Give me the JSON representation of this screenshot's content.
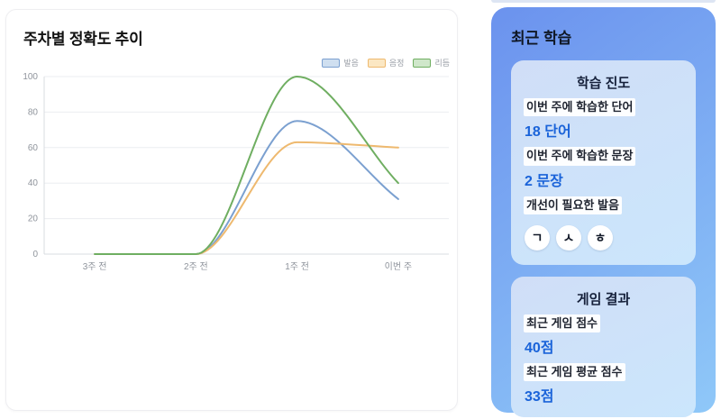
{
  "chart_card": {
    "title": "주차별 정확도 추이"
  },
  "chart_data": {
    "type": "line",
    "title": "주차별 정확도 추이",
    "categories": [
      "3주 전",
      "2주 전",
      "1주 전",
      "이번 주"
    ],
    "series": [
      {
        "name": "발음",
        "values": [
          0,
          0,
          75,
          31
        ],
        "color": "#7ba0d0",
        "fill": "#cfdff0"
      },
      {
        "name": "음정",
        "values": [
          0,
          0,
          63,
          60
        ],
        "color": "#eeb96f",
        "fill": "#fbe7c3"
      },
      {
        "name": "리듬",
        "values": [
          0,
          0,
          100,
          40
        ],
        "color": "#6fae61",
        "fill": "#cfe7ca"
      }
    ],
    "xlabel": "",
    "ylabel": "",
    "ylim": [
      0,
      100
    ],
    "yticks": [
      0,
      20,
      40,
      60,
      80,
      100
    ],
    "grid": true,
    "legend_position": "top-right"
  },
  "recent_panel": {
    "title": "최근 학습",
    "cards": [
      {
        "title": "학습 진도",
        "rows": [
          {
            "label": "이번 주에 학습한 단어",
            "value": "18 단어"
          },
          {
            "label": "이번 주에 학습한 문장",
            "value": "2 문장"
          },
          {
            "label": "개선이 필요한 발음",
            "value": ""
          }
        ],
        "chips": [
          "ㄱ",
          "ㅅ",
          "ㅎ"
        ]
      },
      {
        "title": "게임 결과",
        "rows": [
          {
            "label": "최근 게임 점수",
            "value": "40점"
          },
          {
            "label": "최근 게임 평균 점수",
            "value": "33점"
          }
        ]
      }
    ]
  },
  "colors": {
    "accent_value": "#1a63d9",
    "panel_start": "#6b92ee",
    "panel_end": "#8fc8f8",
    "card_start": "#d0def7",
    "card_end": "#cbe6fc",
    "grid": "#ebedf0",
    "axis": "#d9dce1",
    "tick_text": "#8f949c",
    "title_text": "#111111",
    "header_text": "#0f1724"
  }
}
